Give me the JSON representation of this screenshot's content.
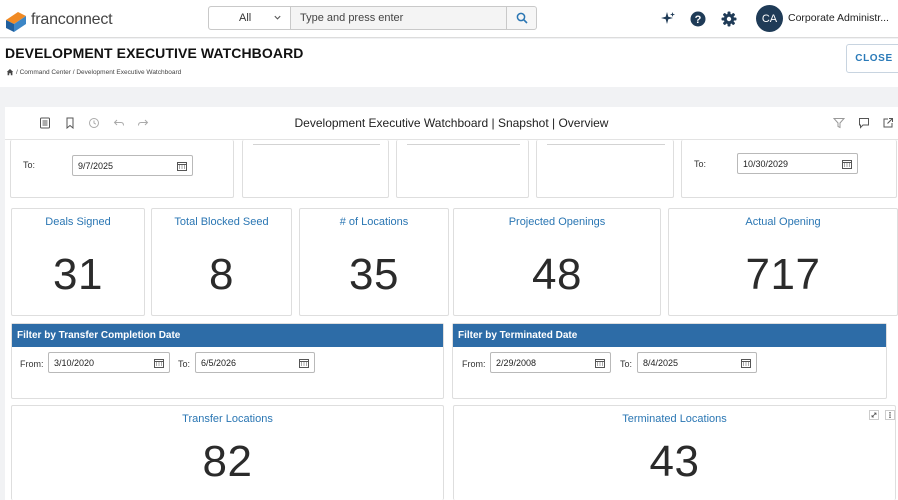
{
  "brand": {
    "name": "franconnect"
  },
  "search": {
    "scope": "All",
    "placeholder": "Type and press enter"
  },
  "user": {
    "initials": "CA",
    "name": "Corporate Administr..."
  },
  "page": {
    "title": "DEVELOPMENT EXECUTIVE WATCHBOARD",
    "breadcrumb": "/ Command Center / Development Executive Watchboard",
    "close_label": "CLOSE"
  },
  "dashboard": {
    "title": "Development Executive Watchboard | Snapshot | Overview",
    "top_filters": {
      "left_to_label": "To:",
      "left_to_value": "9/7/2025",
      "right_to_label": "To:",
      "right_to_value": "10/30/2029"
    },
    "kpis": [
      {
        "title": "Deals Signed",
        "value": "31"
      },
      {
        "title": "Total Blocked Seed",
        "value": "8"
      },
      {
        "title": "# of Locations",
        "value": "35"
      },
      {
        "title": "Projected Openings",
        "value": "48"
      },
      {
        "title": "Actual Opening",
        "value": "717"
      }
    ],
    "filters": [
      {
        "title": "Filter by Transfer Completion Date",
        "from_label": "From:",
        "from_value": "3/10/2020",
        "to_label": "To:",
        "to_value": "6/5/2026"
      },
      {
        "title": "Filter by Terminated Date",
        "from_label": "From:",
        "from_value": "2/29/2008",
        "to_label": "To:",
        "to_value": "8/4/2025"
      }
    ],
    "bottom_kpis": [
      {
        "title": "Transfer Locations",
        "value": "82"
      },
      {
        "title": "Terminated Locations",
        "value": "43"
      }
    ]
  },
  "colors": {
    "accent": "#2a76b3",
    "filter_header": "#2d6ca7",
    "avatar": "#1f3b57",
    "logo_orange": "#f08a24",
    "logo_blue": "#1f5f9e"
  },
  "icons": [
    "home-icon",
    "sparkle-icon",
    "help-icon",
    "gear-icon",
    "search-icon",
    "calendar-icon",
    "filter-icon",
    "comment-icon",
    "share-icon",
    "bookmark-icon",
    "history-icon",
    "undo-icon",
    "redo-icon",
    "notes-icon",
    "expand-icon",
    "more-icon"
  ]
}
